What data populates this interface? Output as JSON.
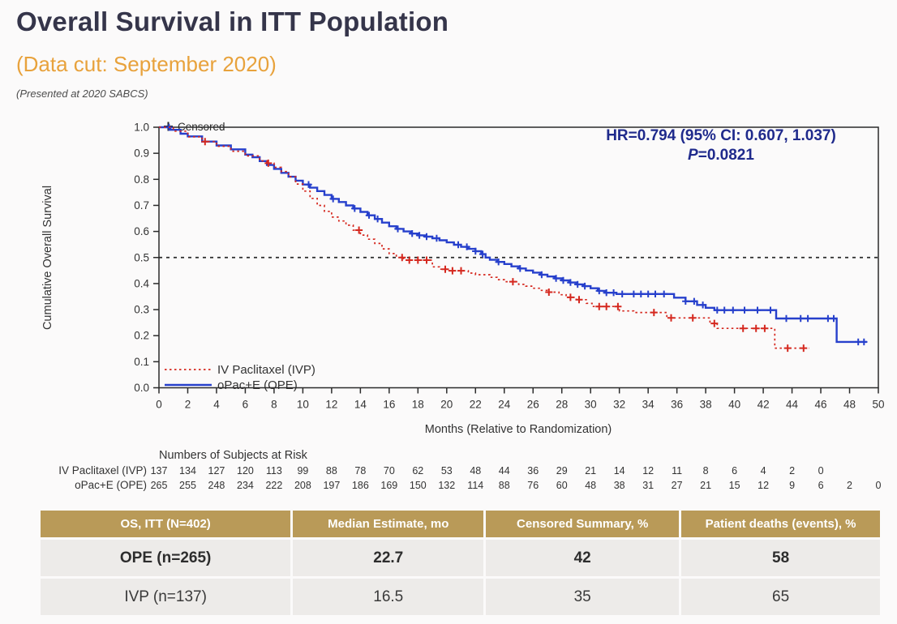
{
  "header": {
    "title": "Overall Survival in ITT Population",
    "subtitle": "(Data cut: September 2020)",
    "presented": "(Presented at 2020 SABCS)"
  },
  "annotation": {
    "line1": "HR=0.794 (95% CI: 0.607, 1.037)",
    "p_italic": "P",
    "p_rest": "=0.0821"
  },
  "chart_data": {
    "type": "line",
    "subtype": "kaplan-meier-step",
    "title": "",
    "xlabel": "Months (Relative to Randomization)",
    "ylabel": "Cumulative Overall Survival",
    "xlim": [
      0,
      50
    ],
    "xtick_step": 2,
    "ylim": [
      0.0,
      1.0
    ],
    "ytick_step": 0.1,
    "reference_line_y": 0.5,
    "censored_label": "Censored",
    "legend_position": "inside-bottom-left",
    "series": [
      {
        "name": "IV Paclitaxel (IVP)",
        "color": "#d5281f",
        "style": "dashed",
        "median_months": 16.5,
        "points": [
          [
            0,
            1.0
          ],
          [
            1,
            0.985
          ],
          [
            2,
            0.963
          ],
          [
            3,
            0.945
          ],
          [
            4,
            0.927
          ],
          [
            5,
            0.908
          ],
          [
            6,
            0.89
          ],
          [
            7,
            0.871
          ],
          [
            7.5,
            0.862
          ],
          [
            8,
            0.846
          ],
          [
            8.5,
            0.83
          ],
          [
            9,
            0.81
          ],
          [
            9.5,
            0.782
          ],
          [
            10,
            0.755
          ],
          [
            10.5,
            0.727
          ],
          [
            11,
            0.7
          ],
          [
            11.5,
            0.677
          ],
          [
            12,
            0.655
          ],
          [
            12.5,
            0.64
          ],
          [
            13,
            0.624
          ],
          [
            13.5,
            0.605
          ],
          [
            14,
            0.586
          ],
          [
            14.5,
            0.57
          ],
          [
            15,
            0.554
          ],
          [
            15.5,
            0.533
          ],
          [
            16,
            0.515
          ],
          [
            16.5,
            0.5
          ],
          [
            17,
            0.49
          ],
          [
            19,
            0.464
          ],
          [
            19.5,
            0.455
          ],
          [
            20,
            0.449
          ],
          [
            21.5,
            0.44
          ],
          [
            22,
            0.434
          ],
          [
            23,
            0.424
          ],
          [
            23.5,
            0.415
          ],
          [
            24,
            0.407
          ],
          [
            25,
            0.397
          ],
          [
            25.5,
            0.39
          ],
          [
            26,
            0.382
          ],
          [
            26.5,
            0.374
          ],
          [
            27,
            0.367
          ],
          [
            27.8,
            0.357
          ],
          [
            28.3,
            0.347
          ],
          [
            29,
            0.338
          ],
          [
            29.7,
            0.324
          ],
          [
            30.1,
            0.312
          ],
          [
            32,
            0.295
          ],
          [
            33,
            0.289
          ],
          [
            35.3,
            0.268
          ],
          [
            38.3,
            0.247
          ],
          [
            38.8,
            0.228
          ],
          [
            42.8,
            0.152
          ],
          [
            45.2,
            0.152
          ]
        ],
        "censor_times": [
          3.2,
          7.6,
          13.9,
          16.9,
          17.4,
          18.0,
          18.6,
          19.9,
          20.4,
          21.0,
          24.6,
          27.1,
          28.6,
          29.2,
          30.6,
          31.1,
          31.9,
          34.4,
          35.6,
          37.1,
          38.6,
          40.6,
          41.5,
          42.1,
          43.7,
          44.8
        ]
      },
      {
        "name": "oPac+E (OPE)",
        "color": "#2740cc",
        "style": "solid",
        "median_months": 22.7,
        "points": [
          [
            0,
            1.0
          ],
          [
            0.8,
            0.99
          ],
          [
            1.5,
            0.975
          ],
          [
            2,
            0.965
          ],
          [
            3,
            0.945
          ],
          [
            4,
            0.93
          ],
          [
            5,
            0.915
          ],
          [
            6,
            0.895
          ],
          [
            6.5,
            0.885
          ],
          [
            7,
            0.87
          ],
          [
            7.5,
            0.855
          ],
          [
            8,
            0.84
          ],
          [
            8.5,
            0.825
          ],
          [
            9,
            0.81
          ],
          [
            9.5,
            0.795
          ],
          [
            10,
            0.78
          ],
          [
            10.5,
            0.768
          ],
          [
            11,
            0.755
          ],
          [
            11.5,
            0.74
          ],
          [
            12,
            0.725
          ],
          [
            12.5,
            0.713
          ],
          [
            13,
            0.7
          ],
          [
            13.5,
            0.688
          ],
          [
            14,
            0.675
          ],
          [
            14.5,
            0.662
          ],
          [
            15,
            0.648
          ],
          [
            15.5,
            0.634
          ],
          [
            16,
            0.62
          ],
          [
            16.5,
            0.61
          ],
          [
            17,
            0.6
          ],
          [
            17.5,
            0.592
          ],
          [
            18,
            0.585
          ],
          [
            18.5,
            0.58
          ],
          [
            19,
            0.574
          ],
          [
            19.5,
            0.566
          ],
          [
            20,
            0.558
          ],
          [
            20.5,
            0.549
          ],
          [
            21,
            0.541
          ],
          [
            21.5,
            0.533
          ],
          [
            22,
            0.524
          ],
          [
            22.4,
            0.513
          ],
          [
            22.7,
            0.5
          ],
          [
            23,
            0.491
          ],
          [
            23.5,
            0.483
          ],
          [
            24,
            0.475
          ],
          [
            24.5,
            0.466
          ],
          [
            25,
            0.458
          ],
          [
            25.5,
            0.45
          ],
          [
            26,
            0.442
          ],
          [
            26.5,
            0.434
          ],
          [
            27,
            0.427
          ],
          [
            27.5,
            0.42
          ],
          [
            28,
            0.412
          ],
          [
            28.5,
            0.404
          ],
          [
            29,
            0.397
          ],
          [
            29.5,
            0.39
          ],
          [
            30,
            0.382
          ],
          [
            30.5,
            0.372
          ],
          [
            31,
            0.365
          ],
          [
            31.8,
            0.36
          ],
          [
            35.8,
            0.346
          ],
          [
            36.6,
            0.332
          ],
          [
            37.4,
            0.318
          ],
          [
            38,
            0.307
          ],
          [
            38.6,
            0.298
          ],
          [
            42.9,
            0.266
          ],
          [
            47.1,
            0.176
          ],
          [
            49.2,
            0.176
          ]
        ],
        "censor_times": [
          0.7,
          10.4,
          12.1,
          13.6,
          14.6,
          15.2,
          16.6,
          17.6,
          18.1,
          18.6,
          19.3,
          20.8,
          21.4,
          22.0,
          22.5,
          23.6,
          25.1,
          26.6,
          27.6,
          28.1,
          28.6,
          29.1,
          29.6,
          30.6,
          31.1,
          31.6,
          32.2,
          33.0,
          33.5,
          34.0,
          34.5,
          35.1,
          36.6,
          37.2,
          37.8,
          38.8,
          39.3,
          39.9,
          40.7,
          41.6,
          42.5,
          43.6,
          44.6,
          45.1,
          46.5,
          46.9,
          48.6,
          49.0
        ]
      }
    ]
  },
  "at_risk": {
    "title": "Numbers of Subjects at Risk",
    "month_step": 2,
    "rows": [
      {
        "label": "IV Paclitaxel (IVP)",
        "values": [
          137,
          134,
          127,
          120,
          113,
          99,
          88,
          78,
          70,
          62,
          53,
          48,
          44,
          36,
          29,
          21,
          14,
          12,
          11,
          8,
          6,
          4,
          2,
          0
        ]
      },
      {
        "label": "oPac+E (OPE)",
        "values": [
          265,
          255,
          248,
          234,
          222,
          208,
          197,
          186,
          169,
          150,
          132,
          114,
          88,
          76,
          60,
          48,
          38,
          31,
          27,
          21,
          15,
          12,
          9,
          6,
          2,
          0
        ]
      }
    ]
  },
  "summary_table": {
    "headers": [
      "OS, ITT (N=402)",
      "Median Estimate, mo",
      "Censored Summary, %",
      "Patient deaths (events), %"
    ],
    "rows": [
      {
        "cells": [
          "OPE (n=265)",
          "22.7",
          "42",
          "58"
        ],
        "bold": true
      },
      {
        "cells": [
          "IVP (n=137)",
          "16.5",
          "35",
          "65"
        ],
        "bold": false
      }
    ]
  },
  "colors": {
    "page_bg": "#fbfafa",
    "title": "#35354a",
    "subtitle": "#e8a23c",
    "hr_text": "#1f2a8c",
    "axis": "#2b2b2b",
    "table_header_bg": "#b99a58",
    "table_row_bg": "#edebe9"
  }
}
